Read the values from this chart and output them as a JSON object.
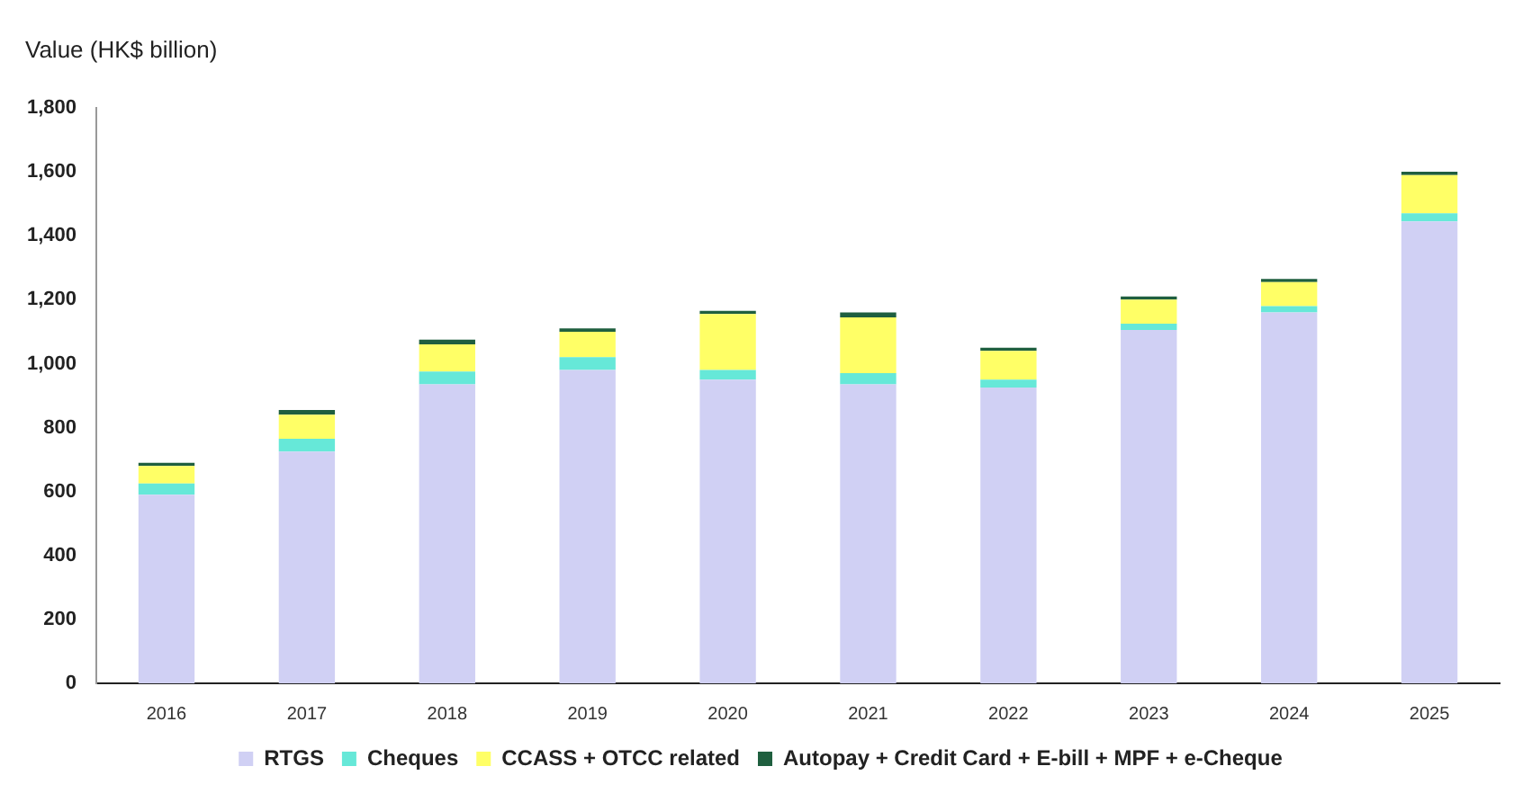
{
  "chart_data": {
    "type": "bar",
    "stacked": true,
    "ylabel": "Value (HK$ billion)",
    "categories": [
      "2016",
      "2017",
      "2018",
      "2019",
      "2020",
      "2021",
      "2022",
      "2023",
      "2024",
      "2025"
    ],
    "series": [
      {
        "name": "RTGS",
        "color": "#d0d0f4",
        "values": [
          590,
          725,
          935,
          980,
          950,
          935,
          925,
          1105,
          1160,
          1445
        ]
      },
      {
        "name": "Cheques",
        "color": "#66e8d8",
        "values": [
          35,
          40,
          40,
          40,
          30,
          35,
          25,
          20,
          20,
          25
        ]
      },
      {
        "name": "CCASS + OTCC related",
        "color": "#ffff66",
        "values": [
          55,
          75,
          85,
          80,
          175,
          175,
          90,
          75,
          75,
          120
        ]
      },
      {
        "name": "Autopay + Credit Card + E-bill + MPF + e-Cheque",
        "color": "#1f5f3f",
        "values": [
          10,
          15,
          15,
          10,
          10,
          15,
          10,
          10,
          10,
          10
        ]
      }
    ],
    "ylim": [
      0,
      1800
    ],
    "yticks": [
      0,
      200,
      400,
      600,
      800,
      {
        "value": 1000,
        "label": "1,000"
      },
      {
        "value": 1200,
        "label": "1,200"
      },
      {
        "value": 1400,
        "label": "1,400"
      },
      {
        "value": 1600,
        "label": "1,600"
      },
      {
        "value": 1800,
        "label": "1,800"
      }
    ],
    "grid": false,
    "legend": "bottom"
  }
}
